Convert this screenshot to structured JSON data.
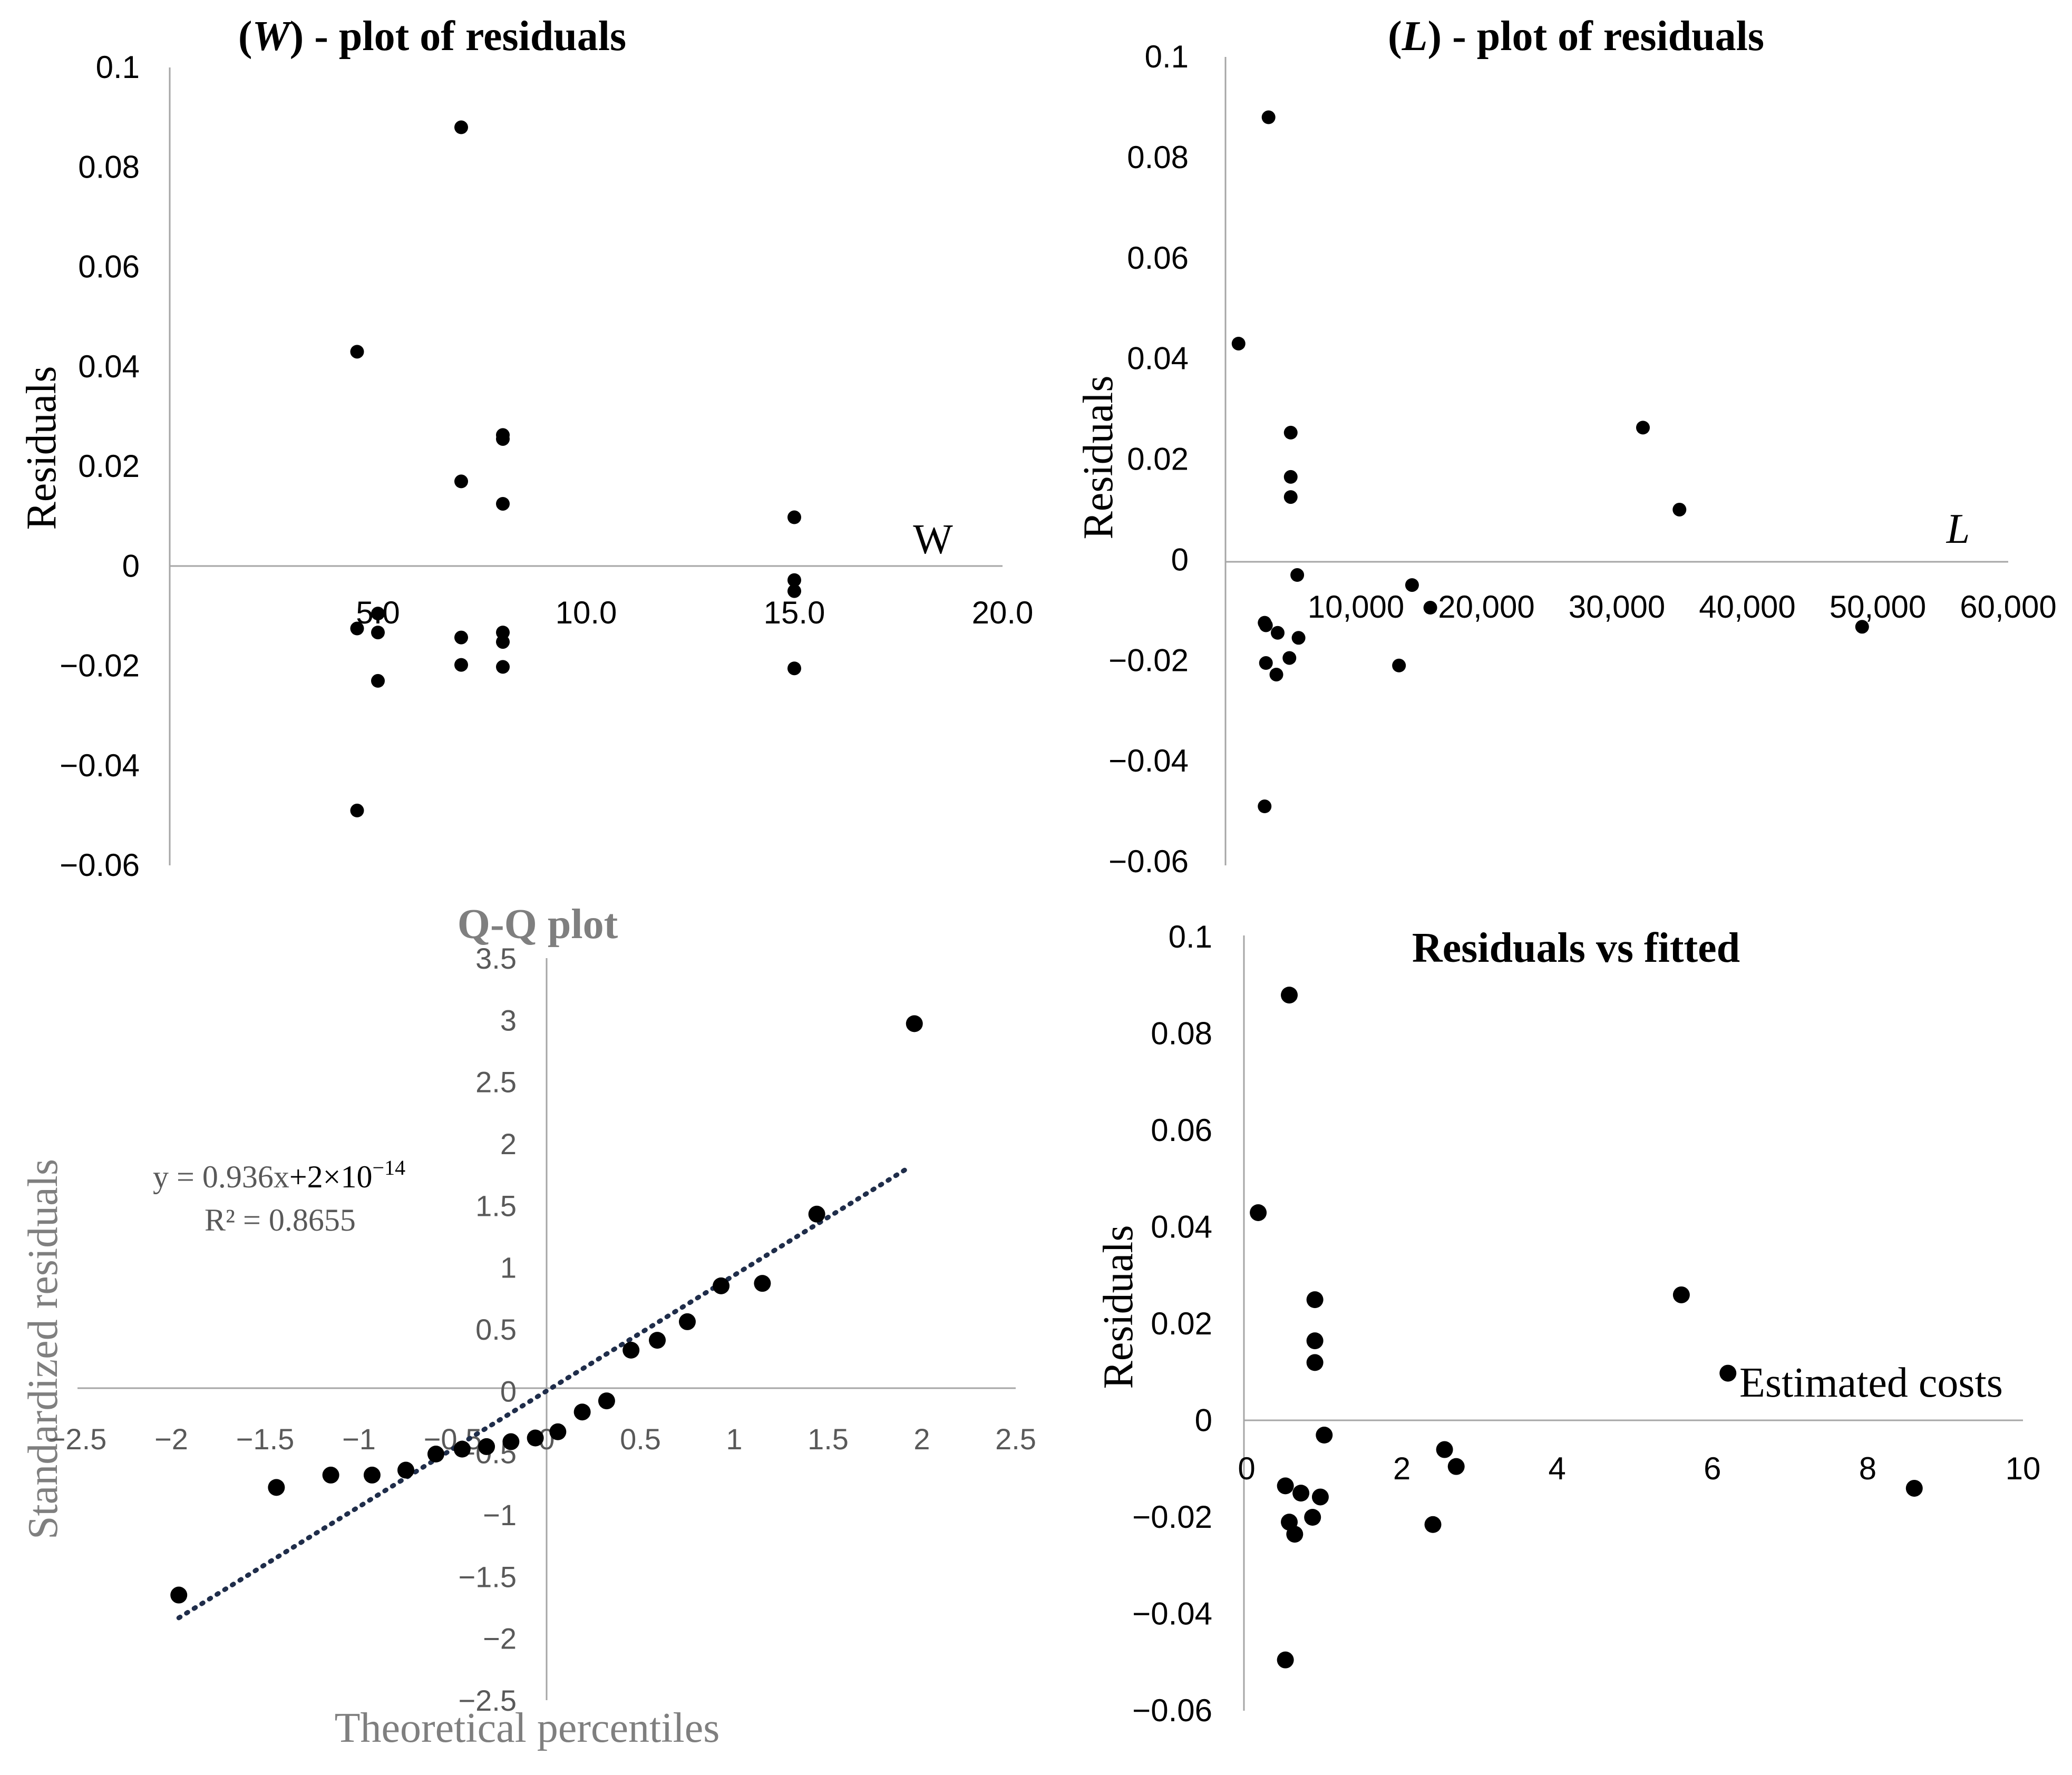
{
  "chart_data": [
    {
      "type": "scatter",
      "title_var": "W",
      "title_rest": ") - plot of residuals",
      "xlabel": "W",
      "ylabel": "Residuals",
      "xlim": [
        0,
        20
      ],
      "ylim": [
        -0.06,
        0.1
      ],
      "x_ticks": [
        "5.0",
        "10.0",
        "15.0",
        "20.0"
      ],
      "y_ticks": [
        "0.1",
        "0.08",
        "0.06",
        "0.04",
        "0.02",
        "0",
        "−0.02",
        "−0.04",
        "−0.06"
      ],
      "points": [
        [
          4.5,
          0.043
        ],
        [
          4.5,
          -0.0125
        ],
        [
          4.5,
          -0.049
        ],
        [
          5.0,
          -0.0095
        ],
        [
          5.0,
          -0.0133
        ],
        [
          5.0,
          -0.023
        ],
        [
          7.0,
          0.088
        ],
        [
          7.0,
          0.017
        ],
        [
          7.0,
          -0.0143
        ],
        [
          7.0,
          -0.0198
        ],
        [
          8.0,
          0.0263
        ],
        [
          8.0,
          0.0255
        ],
        [
          8.0,
          0.0125
        ],
        [
          8.0,
          -0.0133
        ],
        [
          8.0,
          -0.0152
        ],
        [
          8.0,
          -0.0202
        ],
        [
          15.0,
          0.0098
        ],
        [
          15.0,
          -0.0028
        ],
        [
          15.0,
          -0.005
        ],
        [
          15.0,
          -0.0205
        ]
      ]
    },
    {
      "type": "scatter",
      "title_var": "L",
      "title_rest": ") - plot of residuals",
      "xlabel": "L",
      "ylabel": "Residuals",
      "xlim": [
        0,
        60000
      ],
      "ylim": [
        -0.06,
        0.1
      ],
      "x_ticks": [
        "10,000",
        "20,000",
        "30,000",
        "40,000",
        "50,000",
        "60,000"
      ],
      "y_ticks": [
        "0.1",
        "0.08",
        "0.06",
        "0.04",
        "0.02",
        "0",
        "−0.02",
        "−0.04",
        "−0.06"
      ],
      "points": [
        [
          1000,
          0.043
        ],
        [
          3300,
          0.088
        ],
        [
          3000,
          -0.0125
        ],
        [
          3100,
          -0.013
        ],
        [
          3100,
          -0.0205
        ],
        [
          3000,
          -0.049
        ],
        [
          4000,
          -0.0145
        ],
        [
          3900,
          -0.0228
        ],
        [
          5000,
          0.0253
        ],
        [
          5000,
          0.0165
        ],
        [
          5000,
          0.0125
        ],
        [
          4900,
          -0.0195
        ],
        [
          5500,
          -0.003
        ],
        [
          5600,
          -0.0155
        ],
        [
          14300,
          -0.005
        ],
        [
          15700,
          -0.0095
        ],
        [
          13300,
          -0.021
        ],
        [
          32000,
          0.0263
        ],
        [
          34800,
          0.01
        ],
        [
          48800,
          -0.0133
        ]
      ]
    },
    {
      "type": "scatter",
      "title": "Q-Q plot",
      "xlabel": "Theoretical percentiles",
      "ylabel": "Standardized residuals",
      "xlim": [
        -2.5,
        2.5
      ],
      "ylim": [
        -2.5,
        3.5
      ],
      "x_ticks": [
        "−2.5",
        "−2",
        "−1.5",
        "−1",
        "−0.5",
        "0",
        "0.5",
        "1",
        "1.5",
        "2",
        "2.5"
      ],
      "y_ticks": [
        "3.5",
        "3",
        "2.5",
        "2",
        "1.5",
        "1",
        "0.5",
        "0",
        "−0.5",
        "−1",
        "−1.5",
        "−2",
        "−2.5"
      ],
      "points": [
        [
          -1.96,
          -1.65
        ],
        [
          -1.44,
          -0.78
        ],
        [
          -1.15,
          -0.68
        ],
        [
          -0.93,
          -0.68
        ],
        [
          -0.75,
          -0.64
        ],
        [
          -0.59,
          -0.51
        ],
        [
          -0.45,
          -0.47
        ],
        [
          -0.32,
          -0.45
        ],
        [
          -0.19,
          -0.41
        ],
        [
          -0.06,
          -0.38
        ],
        [
          0.06,
          -0.33
        ],
        [
          0.19,
          -0.17
        ],
        [
          0.32,
          -0.08
        ],
        [
          0.45,
          0.33
        ],
        [
          0.59,
          0.41
        ],
        [
          0.75,
          0.56
        ],
        [
          0.93,
          0.85
        ],
        [
          1.15,
          0.87
        ],
        [
          1.44,
          1.43
        ],
        [
          1.96,
          2.97
        ]
      ],
      "trendline": {
        "slope": 0.936,
        "intercept": 0,
        "x_start": -1.96,
        "x_end": 1.93
      },
      "equation_prefix": "y = 0.936x",
      "equation_suffix": "+2×10",
      "equation_exponent": "−14",
      "r_squared": "R² = 0.8655"
    },
    {
      "type": "scatter",
      "title": "Residuals vs fitted",
      "xlabel": "Estimated costs",
      "ylabel": "Residuals",
      "xlim": [
        0,
        10
      ],
      "ylim": [
        -0.06,
        0.1
      ],
      "x_ticks": [
        "0",
        "2",
        "4",
        "6",
        "8",
        "10"
      ],
      "y_ticks": [
        "0.1",
        "0.08",
        "0.06",
        "0.04",
        "0.02",
        "0",
        "−0.02",
        "−0.04",
        "−0.06"
      ],
      "points": [
        [
          0.15,
          0.043
        ],
        [
          0.55,
          0.088
        ],
        [
          0.5,
          -0.0135
        ],
        [
          0.55,
          -0.021
        ],
        [
          0.62,
          -0.0235
        ],
        [
          0.5,
          -0.0495
        ],
        [
          0.7,
          -0.015
        ],
        [
          0.85,
          -0.02
        ],
        [
          0.88,
          0.025
        ],
        [
          0.88,
          0.0165
        ],
        [
          0.88,
          0.012
        ],
        [
          0.95,
          -0.0158
        ],
        [
          1.0,
          -0.003
        ],
        [
          2.55,
          -0.006
        ],
        [
          2.7,
          -0.0095
        ],
        [
          2.4,
          -0.0215
        ],
        [
          5.6,
          0.026
        ],
        [
          6.2,
          0.0098
        ],
        [
          8.6,
          -0.014
        ]
      ]
    }
  ]
}
